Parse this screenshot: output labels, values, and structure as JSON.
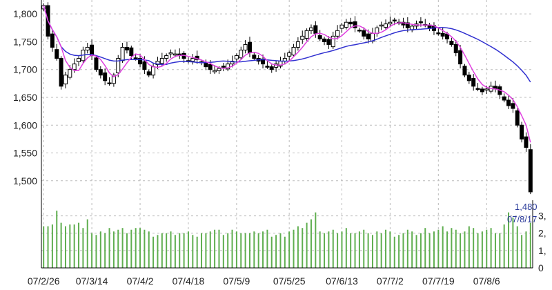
{
  "chart_data": {
    "type": "candlestick",
    "price_axis": {
      "ticks": [
        "1,800",
        "1,750",
        "1,700",
        "1,650",
        "1,600",
        "1,550",
        "1,500"
      ],
      "tick_values": [
        1800,
        1750,
        1700,
        1650,
        1600,
        1550,
        1500
      ],
      "ylim": [
        1465,
        1825
      ]
    },
    "volume_axis": {
      "ticks": [
        "0",
        "1,",
        "2,",
        "3,"
      ],
      "tick_values": [
        0,
        1,
        2,
        3
      ],
      "ylim": [
        0,
        3.9
      ]
    },
    "x_tick_labels": [
      "07/2/26",
      "07/3/14",
      "07/4/2",
      "07/4/18",
      "07/5/9",
      "07/5/25",
      "07/6/13",
      "07/7/2",
      "07/7/19",
      "07/8/6"
    ],
    "x_tick_index": [
      0,
      11,
      22,
      33,
      44,
      56,
      68,
      79,
      90,
      101
    ],
    "grid": true,
    "close": [
      1815,
      1760,
      1740,
      1720,
      1670,
      1690,
      1700,
      1710,
      1720,
      1735,
      1740,
      1725,
      1700,
      1690,
      1680,
      1675,
      1690,
      1720,
      1740,
      1735,
      1725,
      1720,
      1710,
      1700,
      1690,
      1705,
      1715,
      1720,
      1725,
      1730,
      1728,
      1725,
      1720,
      1715,
      1720,
      1718,
      1712,
      1705,
      1700,
      1698,
      1702,
      1705,
      1710,
      1715,
      1725,
      1735,
      1745,
      1730,
      1720,
      1715,
      1710,
      1705,
      1700,
      1710,
      1715,
      1720,
      1730,
      1740,
      1750,
      1760,
      1770,
      1775,
      1765,
      1755,
      1750,
      1745,
      1760,
      1770,
      1780,
      1785,
      1782,
      1775,
      1770,
      1760,
      1755,
      1765,
      1775,
      1780,
      1782,
      1785,
      1788,
      1785,
      1780,
      1775,
      1778,
      1782,
      1785,
      1780,
      1775,
      1770,
      1765,
      1760,
      1755,
      1745,
      1730,
      1710,
      1690,
      1680,
      1670,
      1665,
      1660,
      1665,
      1670,
      1665,
      1655,
      1645,
      1635,
      1630,
      1600,
      1575,
      1560,
      1480
    ],
    "volume": [
      2.4,
      2.4,
      2.5,
      3.3,
      2.6,
      2.4,
      2.5,
      2.5,
      2.6,
      2.3,
      2.8,
      2.0,
      1.9,
      2.1,
      2.0,
      2.3,
      2.1,
      2.2,
      2.3,
      2.0,
      2.2,
      2.3,
      2.3,
      2.2,
      2.1,
      1.8,
      1.9,
      2.0,
      2.0,
      2.1,
      1.9,
      2.0,
      2.0,
      2.1,
      1.9,
      1.8,
      2.0,
      2.0,
      2.1,
      2.2,
      2.2,
      1.9,
      2.0,
      2.2,
      2.1,
      2.0,
      2.0,
      2.0,
      2.1,
      2.0,
      2.1,
      2.2,
      1.8,
      1.9,
      2.0,
      1.8,
      2.1,
      2.2,
      2.4,
      2.3,
      2.6,
      2.8,
      3.2,
      2.1,
      2.0,
      2.1,
      2.2,
      2.0,
      2.1,
      2.3,
      2.0,
      2.0,
      2.1,
      2.2,
      2.0,
      1.9,
      2.1,
      2.0,
      2.2,
      2.1,
      1.8,
      1.9,
      2.0,
      2.2,
      2.1,
      1.9,
      2.0,
      2.3,
      2.0,
      2.1,
      2.2,
      2.4,
      2.1,
      2.3,
      2.2,
      2.0,
      2.1,
      2.4,
      2.3,
      2.0,
      2.1,
      2.2,
      2.3,
      2.0,
      2.0,
      2.5,
      3.2,
      2.9,
      2.4,
      1.9,
      2.1,
      2.6
    ],
    "last_price_label": "1,480",
    "last_date_label": "07/8/17",
    "colors": {
      "up": "#ffffff",
      "down": "#000000",
      "short_ma": "#e040e0",
      "long_ma": "#3030d0",
      "volume": "#5fae4f",
      "grid": "#bbbbbb",
      "annotation": "#2a3a9a"
    }
  }
}
